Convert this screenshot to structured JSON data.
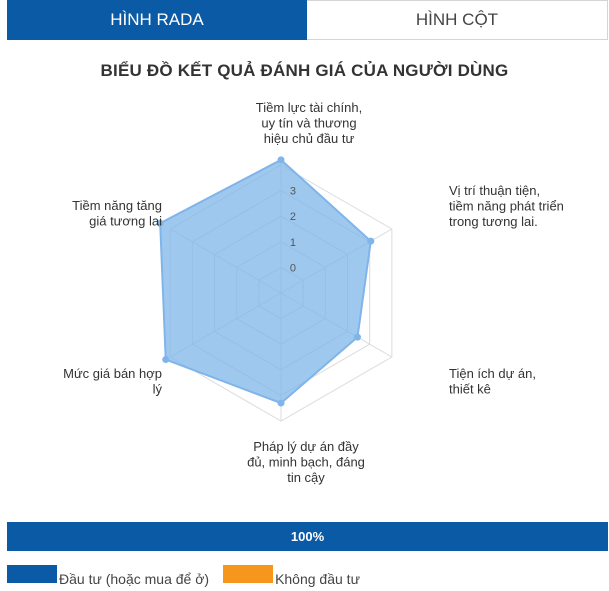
{
  "tabs": [
    {
      "label": "HÌNH RADA",
      "active": true
    },
    {
      "label": "HÌNH CỘT",
      "active": false
    }
  ],
  "chart_data": {
    "type": "radar",
    "title": "BIỂU ĐỒ KẾT QUẢ ĐÁNH GIÁ CỦA NGƯỜI DÙNG",
    "categories": [
      "Tiềm lực tài chính, uy tín và thương hiệu chủ đầu tư",
      "Vị trí thuận tiện, tiềm năng phát triển trong tương lai.",
      "Tiện ích dự án, thiết kê",
      "Pháp lý dự án đầy đủ, minh bạch, đáng tin cậy",
      "Mức giá bán hợp lý",
      "Tiềm năng tăng giá tương lai"
    ],
    "series": [
      {
        "values": [
          4.2,
          3.05,
          2.45,
          3.3,
          4.2,
          4.45
        ],
        "color": "#7fb5ea"
      }
    ],
    "tick_labels": [
      "0",
      "1",
      "2",
      "3"
    ],
    "rlim": [
      -1,
      4
    ],
    "grid": true
  },
  "share_bar": {
    "label": "100%",
    "value": 100,
    "color": "#0b5aa5"
  },
  "legend": [
    {
      "label": "Đầu tư (hoặc mua để ở)",
      "color": "#0b5aa5"
    },
    {
      "label": "Không đầu tư",
      "color": "#f7961d"
    }
  ]
}
